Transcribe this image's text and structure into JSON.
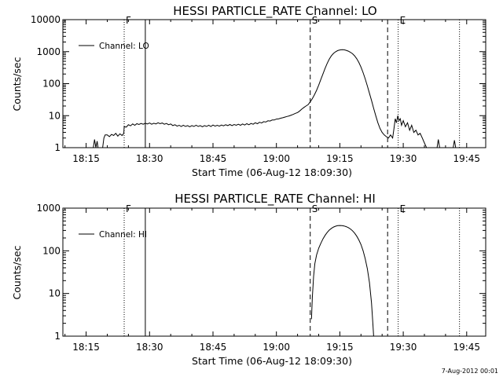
{
  "footer_stamp": "7-Aug-2012 00:01",
  "chart_data": [
    {
      "type": "line",
      "title": "HESSI PARTICLE_RATE Channel: LO",
      "xlabel": "Start Time (06-Aug-12 18:09:30)",
      "ylabel": "Counts/sec",
      "y_scale": "log",
      "xlim_minutes": [
        0,
        100
      ],
      "ylim": [
        1,
        10000
      ],
      "x_tick_labels": [
        "18:15",
        "18:30",
        "18:45",
        "19:00",
        "19:15",
        "19:30",
        "19:45"
      ],
      "x_tick_minutes": [
        5.5,
        20.5,
        35.5,
        50.5,
        65.5,
        80.5,
        95.5
      ],
      "y_tick_labels": [
        "1",
        "10",
        "100",
        "1000",
        "10000"
      ],
      "y_tick_values": [
        1,
        10,
        100,
        1000,
        10000
      ],
      "legend": {
        "label": "Channel: LO",
        "position": "top-left"
      },
      "markers": [
        {
          "label": "F",
          "minute": 14.5,
          "style": "dotted"
        },
        {
          "label": "",
          "minute": 19.5,
          "style": "solid"
        },
        {
          "label": "S",
          "minute": 58.5,
          "style": "dashed"
        },
        {
          "label": "",
          "minute": 76.8,
          "style": "dashed"
        },
        {
          "label": "E",
          "minute": 79.3,
          "style": "dotted"
        },
        {
          "label": "",
          "minute": 93.8,
          "style": "dotted"
        }
      ],
      "series": [
        {
          "name": "Channel: LO",
          "points": [
            [
              7.2,
              1
            ],
            [
              7.5,
              1.8
            ],
            [
              7.8,
              1
            ],
            [
              8.1,
              1.6
            ],
            [
              8.3,
              1
            ],
            [
              9.4,
              1
            ],
            [
              9.7,
              2
            ],
            [
              10.0,
              2.5
            ],
            [
              10.5,
              2.5
            ],
            [
              11.0,
              2.2
            ],
            [
              11.5,
              2.6
            ],
            [
              12.0,
              2.4
            ],
            [
              12.5,
              2.8
            ],
            [
              13.0,
              2.3
            ],
            [
              13.5,
              2.7
            ],
            [
              14.0,
              2.4
            ],
            [
              14.4,
              2.8
            ],
            [
              14.5,
              4.5
            ],
            [
              15.0,
              4.4
            ],
            [
              15.5,
              5.2
            ],
            [
              16.0,
              4.8
            ],
            [
              16.5,
              5.5
            ],
            [
              17.0,
              5.0
            ],
            [
              17.5,
              5.6
            ],
            [
              18.0,
              5.3
            ],
            [
              18.5,
              5.7
            ],
            [
              19.0,
              5.4
            ],
            [
              19.5,
              5.8
            ],
            [
              20.0,
              5.5
            ],
            [
              20.5,
              5.9
            ],
            [
              21.0,
              5.4
            ],
            [
              21.5,
              5.8
            ],
            [
              22.0,
              5.5
            ],
            [
              22.5,
              6.0
            ],
            [
              23.0,
              5.6
            ],
            [
              23.5,
              5.9
            ],
            [
              24.0,
              5.4
            ],
            [
              24.5,
              5.7
            ],
            [
              25.0,
              5.2
            ],
            [
              25.5,
              5.5
            ],
            [
              26.0,
              4.9
            ],
            [
              26.5,
              5.2
            ],
            [
              27.0,
              4.7
            ],
            [
              27.5,
              5.0
            ],
            [
              28.0,
              4.6
            ],
            [
              28.5,
              5.0
            ],
            [
              29.0,
              4.6
            ],
            [
              29.5,
              4.9
            ],
            [
              30.0,
              4.5
            ],
            [
              30.5,
              4.9
            ],
            [
              31.0,
              4.6
            ],
            [
              31.5,
              5.0
            ],
            [
              32.0,
              4.6
            ],
            [
              32.5,
              4.9
            ],
            [
              33.0,
              4.5
            ],
            [
              33.5,
              4.9
            ],
            [
              34.0,
              4.6
            ],
            [
              34.5,
              5.0
            ],
            [
              35.0,
              4.6
            ],
            [
              35.5,
              5.1
            ],
            [
              36.0,
              4.7
            ],
            [
              36.5,
              5.0
            ],
            [
              37.0,
              4.7
            ],
            [
              37.5,
              5.1
            ],
            [
              38.0,
              4.8
            ],
            [
              38.5,
              5.2
            ],
            [
              39.0,
              4.9
            ],
            [
              39.5,
              5.3
            ],
            [
              40.0,
              4.9
            ],
            [
              40.5,
              5.3
            ],
            [
              41.0,
              5.0
            ],
            [
              41.5,
              5.4
            ],
            [
              42.0,
              5.0
            ],
            [
              42.5,
              5.5
            ],
            [
              43.0,
              5.1
            ],
            [
              43.5,
              5.6
            ],
            [
              44.0,
              5.2
            ],
            [
              44.5,
              5.7
            ],
            [
              45.0,
              5.4
            ],
            [
              45.5,
              6.0
            ],
            [
              46.0,
              5.6
            ],
            [
              46.5,
              6.2
            ],
            [
              47.0,
              5.9
            ],
            [
              47.5,
              6.5
            ],
            [
              48.0,
              6.3
            ],
            [
              48.5,
              6.9
            ],
            [
              49.0,
              6.8
            ],
            [
              49.5,
              7.3
            ],
            [
              50.0,
              7.3
            ],
            [
              50.5,
              7.8
            ],
            [
              51.0,
              7.9
            ],
            [
              51.5,
              8.3
            ],
            [
              52.0,
              8.6
            ],
            [
              52.5,
              9.0
            ],
            [
              53.0,
              9.4
            ],
            [
              53.5,
              9.8
            ],
            [
              54.0,
              10.4
            ],
            [
              54.5,
              11
            ],
            [
              55.0,
              11.8
            ],
            [
              55.5,
              12.5
            ],
            [
              56.0,
              14
            ],
            [
              56.5,
              16
            ],
            [
              57.0,
              18
            ],
            [
              57.5,
              20
            ],
            [
              58.0,
              22
            ],
            [
              58.5,
              27
            ],
            [
              59.0,
              34
            ],
            [
              59.5,
              45
            ],
            [
              60.0,
              62
            ],
            [
              60.5,
              90
            ],
            [
              61.0,
              135
            ],
            [
              61.5,
              200
            ],
            [
              62.0,
              300
            ],
            [
              62.5,
              430
            ],
            [
              63.0,
              580
            ],
            [
              63.5,
              740
            ],
            [
              64.0,
              880
            ],
            [
              64.5,
              990
            ],
            [
              65.0,
              1080
            ],
            [
              65.5,
              1130
            ],
            [
              66.0,
              1150
            ],
            [
              66.5,
              1140
            ],
            [
              67.0,
              1100
            ],
            [
              67.5,
              1040
            ],
            [
              68.0,
              960
            ],
            [
              68.5,
              860
            ],
            [
              69.0,
              740
            ],
            [
              69.5,
              600
            ],
            [
              70.0,
              460
            ],
            [
              70.5,
              330
            ],
            [
              71.0,
              220
            ],
            [
              71.5,
              140
            ],
            [
              72.0,
              85
            ],
            [
              72.5,
              50
            ],
            [
              73.0,
              30
            ],
            [
              73.5,
              17
            ],
            [
              74.0,
              10
            ],
            [
              74.5,
              6
            ],
            [
              75.0,
              4
            ],
            [
              75.5,
              3
            ],
            [
              76.0,
              2.5
            ],
            [
              76.5,
              2.2
            ],
            [
              77.0,
              2.0
            ],
            [
              77.5,
              2.5
            ],
            [
              78.0,
              2.0
            ],
            [
              78.3,
              4
            ],
            [
              78.6,
              8
            ],
            [
              78.9,
              6
            ],
            [
              79.2,
              10
            ],
            [
              79.5,
              7
            ],
            [
              79.8,
              8
            ],
            [
              80.1,
              5
            ],
            [
              80.5,
              7
            ],
            [
              81.0,
              4.5
            ],
            [
              81.5,
              6
            ],
            [
              82.0,
              3.5
            ],
            [
              82.5,
              5
            ],
            [
              83.0,
              3.0
            ],
            [
              83.5,
              3.5
            ],
            [
              84.0,
              2.5
            ],
            [
              84.5,
              2.8
            ],
            [
              85.0,
              2.0
            ],
            [
              85.5,
              1.4
            ],
            [
              86.0,
              1
            ],
            [
              88.5,
              1
            ],
            [
              88.8,
              1.8
            ],
            [
              89.1,
              1
            ],
            [
              92.3,
              1
            ],
            [
              92.6,
              1.7
            ],
            [
              92.9,
              1
            ]
          ]
        }
      ]
    },
    {
      "type": "line",
      "title": "HESSI PARTICLE_RATE Channel: HI",
      "xlabel": "Start Time (06-Aug-12 18:09:30)",
      "ylabel": "Counts/sec",
      "y_scale": "log",
      "xlim_minutes": [
        0,
        100
      ],
      "ylim": [
        1,
        1000
      ],
      "x_tick_labels": [
        "18:15",
        "18:30",
        "18:45",
        "19:00",
        "19:15",
        "19:30",
        "19:45"
      ],
      "x_tick_minutes": [
        5.5,
        20.5,
        35.5,
        50.5,
        65.5,
        80.5,
        95.5
      ],
      "y_tick_labels": [
        "1",
        "10",
        "100",
        "1000"
      ],
      "y_tick_values": [
        1,
        10,
        100,
        1000
      ],
      "legend": {
        "label": "Channel: HI",
        "position": "top-left"
      },
      "markers": [
        {
          "label": "F",
          "minute": 14.5,
          "style": "dotted"
        },
        {
          "label": "",
          "minute": 19.5,
          "style": "solid"
        },
        {
          "label": "S",
          "minute": 58.5,
          "style": "dashed"
        },
        {
          "label": "",
          "minute": 76.8,
          "style": "dashed"
        },
        {
          "label": "E",
          "minute": 79.3,
          "style": "dotted"
        },
        {
          "label": "",
          "minute": 93.8,
          "style": "dotted"
        }
      ],
      "series": [
        {
          "name": "Channel: HI",
          "points": [
            [
              58.8,
              2.5
            ],
            [
              59.0,
              8
            ],
            [
              59.3,
              25
            ],
            [
              59.6,
              50
            ],
            [
              60.0,
              80
            ],
            [
              60.5,
              115
            ],
            [
              61.0,
              150
            ],
            [
              61.5,
              190
            ],
            [
              62.0,
              230
            ],
            [
              62.5,
              270
            ],
            [
              63.0,
              305
            ],
            [
              63.5,
              335
            ],
            [
              64.0,
              360
            ],
            [
              64.5,
              378
            ],
            [
              65.0,
              388
            ],
            [
              65.5,
              392
            ],
            [
              66.0,
              390
            ],
            [
              66.5,
              382
            ],
            [
              67.0,
              368
            ],
            [
              67.5,
              350
            ],
            [
              68.0,
              325
            ],
            [
              68.5,
              295
            ],
            [
              69.0,
              260
            ],
            [
              69.5,
              220
            ],
            [
              70.0,
              180
            ],
            [
              70.5,
              140
            ],
            [
              71.0,
              100
            ],
            [
              71.5,
              65
            ],
            [
              72.0,
              38
            ],
            [
              72.5,
              18
            ],
            [
              73.0,
              6
            ],
            [
              73.3,
              2
            ],
            [
              73.5,
              1
            ]
          ]
        }
      ]
    }
  ]
}
